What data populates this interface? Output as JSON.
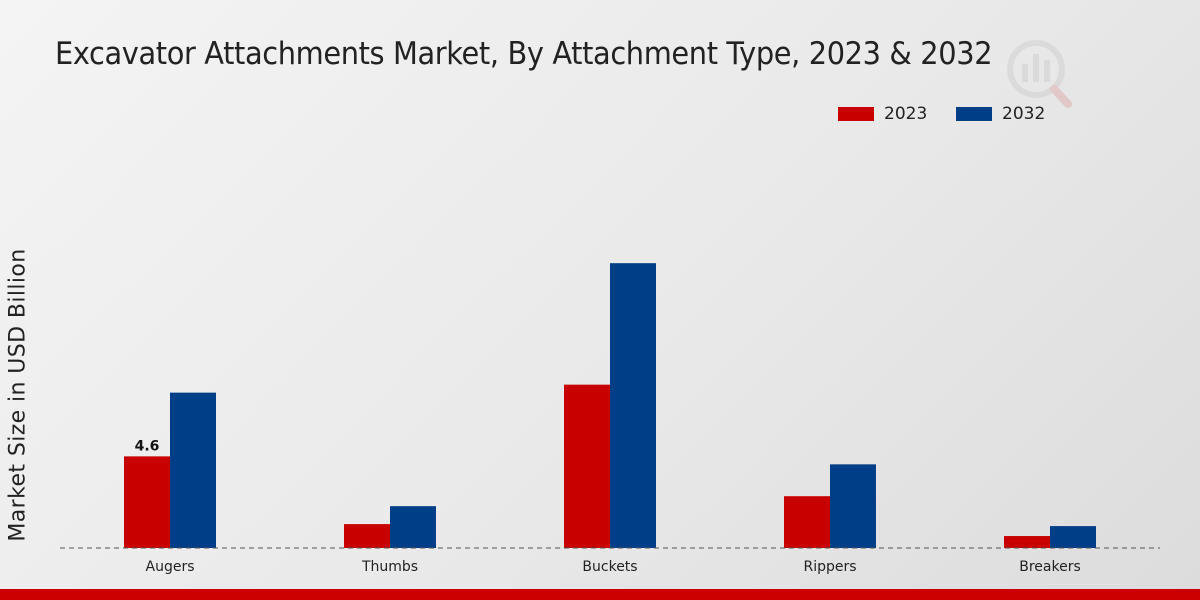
{
  "chart_data": {
    "type": "bar",
    "title": "Excavator Attachments Market, By Attachment Type, 2023 & 2032",
    "ylabel": "Market Size in USD Billion",
    "xlabel": "",
    "categories": [
      "Augers",
      "Thumbs",
      "Buckets",
      "Rippers",
      "Breakers"
    ],
    "series": [
      {
        "name": "2023",
        "color": "#c80000",
        "values": [
          4.6,
          1.2,
          8.2,
          2.6,
          0.6
        ]
      },
      {
        "name": "2032",
        "color": "#003f87",
        "values": [
          7.8,
          2.1,
          14.3,
          4.2,
          1.1
        ]
      }
    ],
    "data_labels": [
      {
        "series": 0,
        "index": 0,
        "text": "4.6"
      }
    ],
    "ylim": [
      0,
      24.5
    ],
    "grid": false,
    "legend_position": "top-right",
    "baseline_style": "dashed"
  },
  "colors": {
    "accent_bar": "#cc0000"
  }
}
